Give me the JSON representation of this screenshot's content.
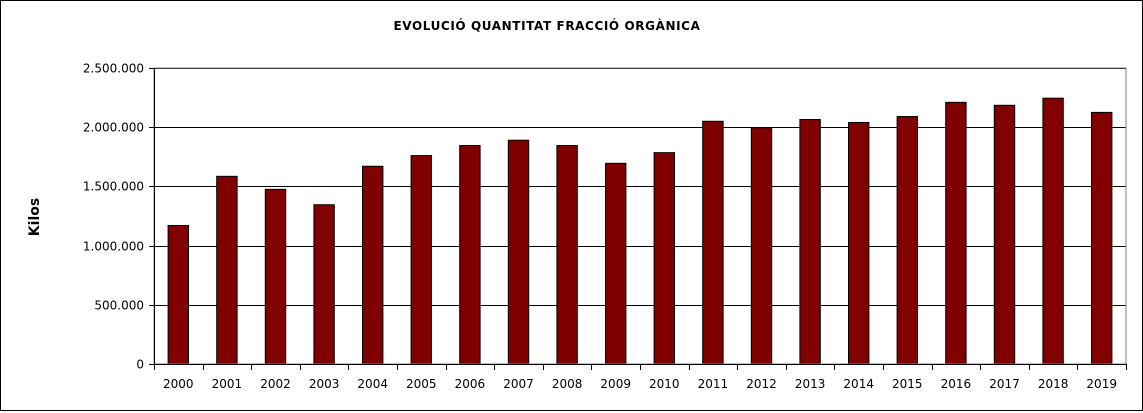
{
  "chart_data": {
    "type": "bar",
    "title": "EVOLUCIÓ  QUANTITAT  FRACCIÓ  ORGÀNICA",
    "xlabel": "",
    "ylabel": "Kilos",
    "categories": [
      "2000",
      "2001",
      "2002",
      "2003",
      "2004",
      "2005",
      "2006",
      "2007",
      "2008",
      "2009",
      "2010",
      "2011",
      "2012",
      "2013",
      "2014",
      "2015",
      "2016",
      "2017",
      "2018",
      "2019"
    ],
    "values": [
      1170000,
      1585000,
      1475000,
      1345000,
      1670000,
      1760000,
      1845000,
      1890000,
      1845000,
      1695000,
      1785000,
      2050000,
      1995000,
      2065000,
      2040000,
      2090000,
      2210000,
      2185000,
      2245000,
      2125000
    ],
    "ylim": [
      0,
      2500000
    ],
    "yticks": [
      0,
      500000,
      1000000,
      1500000,
      2000000,
      2500000
    ],
    "ytick_labels": [
      "0",
      "500.000",
      "1.000.000",
      "1.500.000",
      "2.000.000",
      "2.500.000"
    ],
    "grid": true,
    "legend": "none",
    "bar_color": "#800000"
  }
}
